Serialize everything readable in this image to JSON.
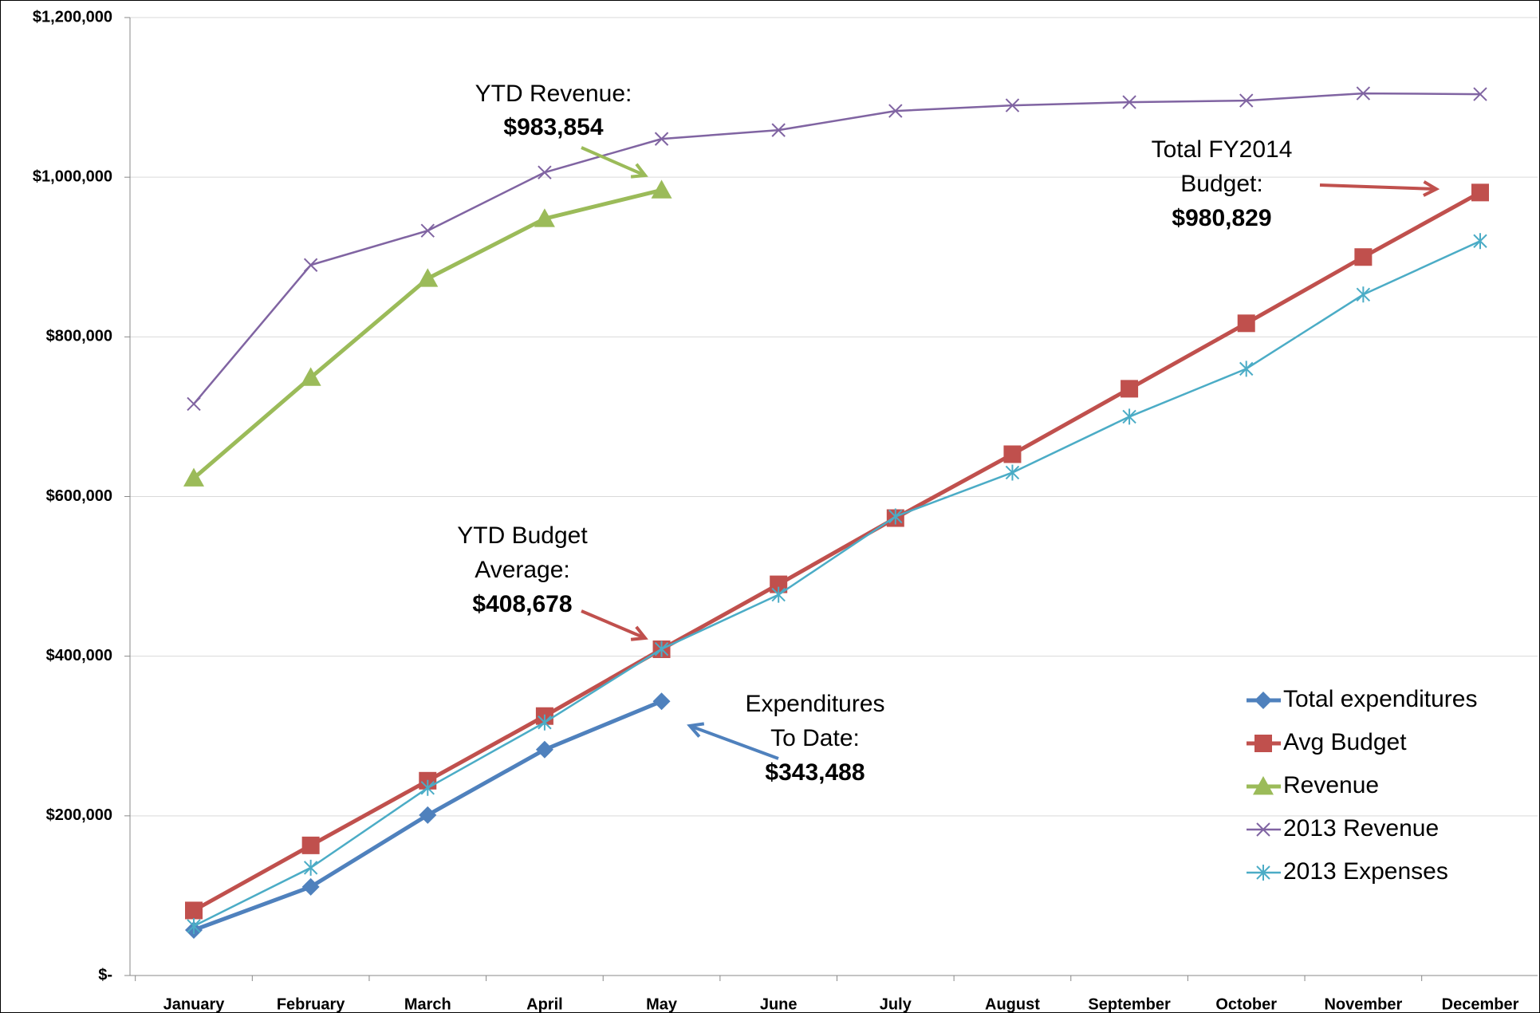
{
  "chart_data": {
    "type": "line",
    "categories": [
      "January",
      "February",
      "March",
      "April",
      "May",
      "June",
      "July",
      "August",
      "September",
      "October",
      "November",
      "December"
    ],
    "series": [
      {
        "name": "Total expenditures",
        "color": "#4f81bd",
        "marker": "diamond",
        "values": [
          57000,
          111000,
          201000,
          283000,
          343488,
          null,
          null,
          null,
          null,
          null,
          null,
          null
        ]
      },
      {
        "name": "Avg Budget",
        "color": "#c0504d",
        "marker": "square",
        "values": [
          81500,
          163000,
          244000,
          325000,
          408678,
          490000,
          573000,
          653000,
          735000,
          817000,
          900000,
          980829
        ]
      },
      {
        "name": "Revenue",
        "color": "#9bbb59",
        "marker": "triangle",
        "values": [
          623000,
          749000,
          873000,
          948000,
          983854,
          null,
          null,
          null,
          null,
          null,
          null,
          null
        ]
      },
      {
        "name": "2013 Revenue",
        "color": "#8064a2",
        "marker": "x",
        "values": [
          716000,
          890000,
          933000,
          1006000,
          1048000,
          1059000,
          1083000,
          1090000,
          1094000,
          1096000,
          1105000,
          1104000
        ]
      },
      {
        "name": "2013 Expenses",
        "color": "#4bacc6",
        "marker": "star",
        "values": [
          62000,
          135000,
          235000,
          317000,
          409000,
          477000,
          575000,
          630000,
          700000,
          760000,
          853000,
          920000
        ]
      }
    ],
    "ylim": [
      0,
      1200000
    ],
    "yticks": [
      {
        "value": 0,
        "label": "$-"
      },
      {
        "value": 200000,
        "label": "$200,000"
      },
      {
        "value": 400000,
        "label": "$400,000"
      },
      {
        "value": 600000,
        "label": "$600,000"
      },
      {
        "value": 800000,
        "label": "$800,000"
      },
      {
        "value": 1000000,
        "label": "$1,000,000"
      },
      {
        "value": 1200000,
        "label": "$1,200,000"
      }
    ],
    "grid": true,
    "legend": "lower right",
    "annotations": [
      {
        "lines": [
          "YTD Revenue:",
          "$983,854"
        ],
        "color": "#9bbb59"
      },
      {
        "lines": [
          "Total FY2014",
          "Budget:",
          "$980,829"
        ],
        "color": "#c0504d"
      },
      {
        "lines": [
          "YTD Budget",
          "Average:",
          "$408,678"
        ],
        "color": "#c0504d"
      },
      {
        "lines": [
          "Expenditures",
          "To Date:",
          "$343,488"
        ],
        "color": "#4f81bd"
      }
    ]
  }
}
